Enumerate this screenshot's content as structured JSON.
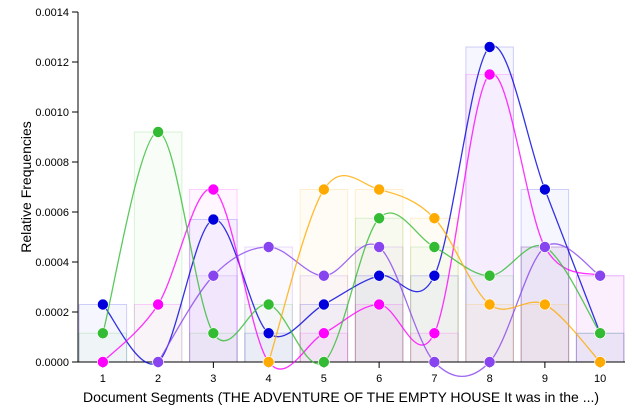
{
  "chart_data": {
    "type": "line",
    "xlabel": "Document Segments (THE ADVENTURE OF THE EMPTY HOUSE It was in the ...)",
    "ylabel": "Relative Frequencies",
    "x": [
      1,
      2,
      3,
      4,
      5,
      6,
      7,
      8,
      9,
      10
    ],
    "xlim": [
      0.55,
      10.45
    ],
    "ylim": [
      0,
      0.0014
    ],
    "yticks": [
      "0.0000",
      "0.0002",
      "0.0004",
      "0.0006",
      "0.0008",
      "0.0010",
      "0.0012",
      "0.0014"
    ],
    "grid": false,
    "legend": "none",
    "series": [
      {
        "color": "#0000dd",
        "values": [
          0.00023,
          0.0,
          0.00057,
          0.000115,
          0.00023,
          0.000345,
          0.000345,
          0.00126,
          0.00069,
          0.000115
        ]
      },
      {
        "color": "#ff00ff",
        "values": [
          0.0,
          0.00023,
          0.00069,
          0.0,
          0.000115,
          0.00023,
          0.000115,
          0.00115,
          0.00046,
          0.000345
        ]
      },
      {
        "color": "#33bb33",
        "values": [
          0.000115,
          0.00092,
          0.000115,
          0.00023,
          0.0,
          0.000575,
          0.00046,
          0.000345,
          0.00046,
          0.000115
        ]
      },
      {
        "color": "#8844ee",
        "values": [
          0.0,
          0.0,
          0.000345,
          0.00046,
          0.000345,
          0.00046,
          0.0,
          0.0,
          0.00046,
          0.000345
        ]
      },
      {
        "color": "#ffaa00",
        "values": [
          0.0,
          0.0,
          0.0,
          0.0,
          0.00069,
          0.00069,
          0.000575,
          0.00023,
          0.00023,
          0.0
        ]
      }
    ]
  }
}
